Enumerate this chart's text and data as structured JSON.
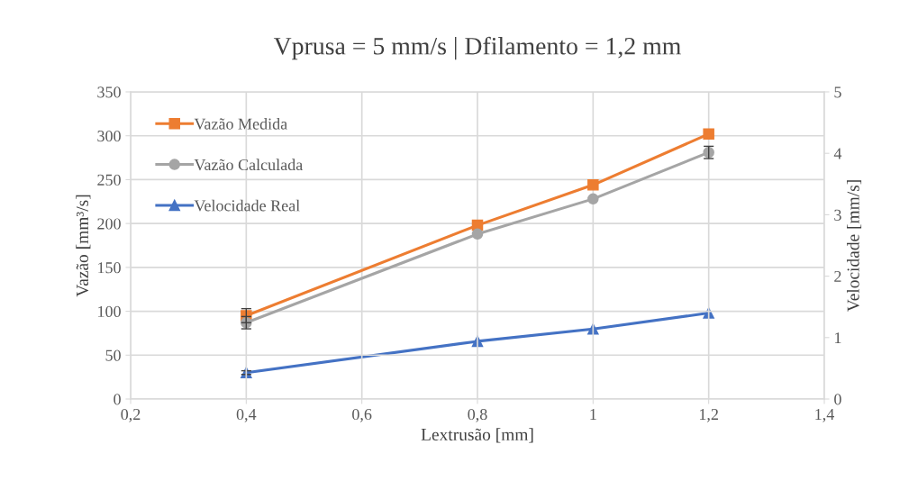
{
  "chart_data": {
    "type": "line",
    "title": "Vprusa = 5 mm/s | Dfilamento = 1,2 mm",
    "xlabel": "Lextrusão [mm]",
    "ylabel": "Vazão [mm³/s]",
    "y2label": "Velocidade [mm/s]",
    "x": [
      0.4,
      0.8,
      1.0,
      1.2
    ],
    "series": [
      {
        "name": "Vazão Medida",
        "color": "#ed7d31",
        "marker": "square",
        "values": [
          95,
          198,
          244,
          302
        ],
        "errors": [
          8,
          null,
          null,
          null
        ]
      },
      {
        "name": "Vazão Calculada",
        "color": "#a5a5a5",
        "marker": "circle",
        "values": [
          87,
          188,
          228,
          281
        ],
        "errors": [
          7,
          null,
          null,
          7
        ]
      },
      {
        "name": "Velocidade Real",
        "color": "#4472c4",
        "marker": "triangle",
        "axis": "y2",
        "values": [
          0.43,
          0.94,
          1.14,
          1.4
        ],
        "errors": [
          0.03,
          null,
          null,
          null
        ]
      }
    ],
    "xlim": [
      0.2,
      1.4
    ],
    "xticks": [
      {
        "value": 0.2,
        "label": "0,2"
      },
      {
        "value": 0.4,
        "label": "0,4"
      },
      {
        "value": 0.6,
        "label": "0,6"
      },
      {
        "value": 0.8,
        "label": "0,8"
      },
      {
        "value": 1,
        "label": "1"
      },
      {
        "value": 1.2,
        "label": "1,2"
      },
      {
        "value": 1.4,
        "label": "1,4"
      }
    ],
    "ylim": [
      0,
      350
    ],
    "yticks": [
      0,
      50,
      100,
      150,
      200,
      250,
      300,
      350
    ],
    "y2lim": [
      0,
      5
    ],
    "y2ticks": [
      0,
      1,
      2,
      3,
      4,
      5
    ],
    "grid": true,
    "legend": "top left",
    "line_style": "solid"
  }
}
